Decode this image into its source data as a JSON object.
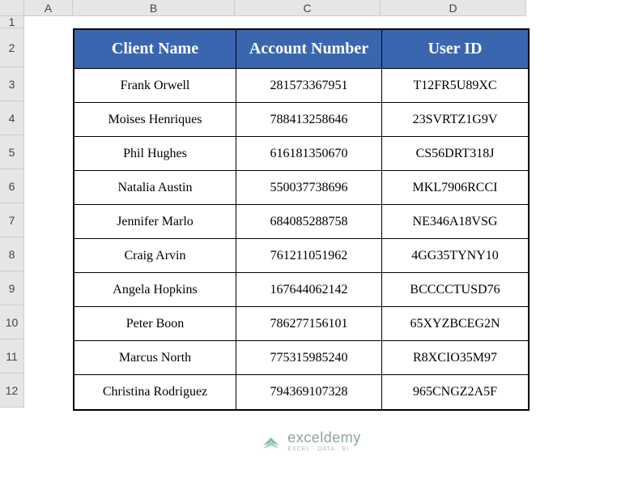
{
  "columns": {
    "letters": [
      "A",
      "B",
      "C",
      "D"
    ],
    "widths": [
      60,
      200,
      180,
      180
    ]
  },
  "rows": {
    "numbers": [
      "1",
      "2",
      "3",
      "4",
      "5",
      "6",
      "7",
      "8",
      "9",
      "10",
      "11",
      "12"
    ],
    "heights": [
      15,
      48,
      42,
      42,
      42,
      42,
      42,
      42,
      42,
      42,
      42,
      42
    ]
  },
  "table": {
    "header_bg": "#3a66b0",
    "header_fg": "#ffffff",
    "border_color": "#000000",
    "headers": {
      "clientName": "Client Name",
      "accountNumber": "Account Number",
      "userId": "User ID"
    },
    "data": [
      {
        "clientName": "Frank Orwell",
        "accountNumber": "281573367951",
        "userId": "T12FR5U89XC"
      },
      {
        "clientName": "Moises Henriques",
        "accountNumber": "788413258646",
        "userId": "23SVRTZ1G9V"
      },
      {
        "clientName": "Phil Hughes",
        "accountNumber": "616181350670",
        "userId": "CS56DRT318J"
      },
      {
        "clientName": "Natalia Austin",
        "accountNumber": "550037738696",
        "userId": "MKL7906RCCI"
      },
      {
        "clientName": "Jennifer Marlo",
        "accountNumber": "684085288758",
        "userId": "NE346A18VSG"
      },
      {
        "clientName": "Craig Arvin",
        "accountNumber": "761211051962",
        "userId": "4GG35TYNY10"
      },
      {
        "clientName": "Angela Hopkins",
        "accountNumber": "167644062142",
        "userId": "BCCCCTUSD76"
      },
      {
        "clientName": "Peter Boon",
        "accountNumber": "786277156101",
        "userId": "65XYZBCEG2N"
      },
      {
        "clientName": "Marcus North",
        "accountNumber": "775315985240",
        "userId": "R8XCIO35M97"
      },
      {
        "clientName": "Christina Rodriguez",
        "accountNumber": "794369107328",
        "userId": "965CNGZ2A5F"
      }
    ]
  },
  "watermark": {
    "brand": "exceldemy",
    "tagline": "EXCEL · DATA · BI"
  }
}
